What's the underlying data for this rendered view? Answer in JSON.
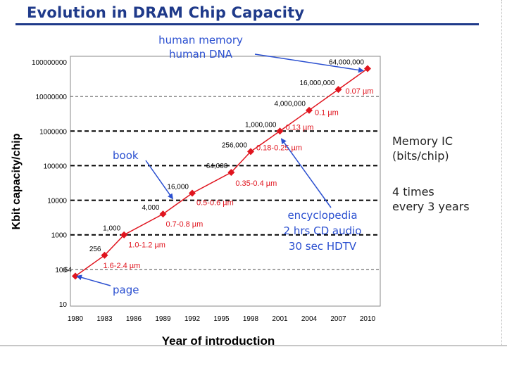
{
  "header": {
    "title": "Evolution in DRAM Chip Capacity"
  },
  "side_notes": {
    "memory_ic_line1": "Memory IC",
    "memory_ic_line2": "(bits/chip)",
    "growth_line1": "4 times",
    "growth_line2": "every 3 years"
  },
  "colors": {
    "title": "#1f3a8a",
    "series": "#e0141e",
    "callout": "#2a4fd0",
    "grid": "#000000"
  },
  "chart_data": {
    "type": "scatter",
    "title": "Evolution in DRAM Chip Capacity",
    "xlabel": "Year of introduction",
    "ylabel": "Kbit capacity/chip",
    "yscale": "log",
    "ylim": [
      10,
      100000000
    ],
    "xlim": [
      1980,
      2010
    ],
    "x_ticks": [
      "1980",
      "1983",
      "1986",
      "1989",
      "1992",
      "1995",
      "1998",
      "2001",
      "2004",
      "2007",
      "2010"
    ],
    "y_ticks": [
      "10",
      "100",
      "1000",
      "10000",
      "100000",
      "1000000",
      "10000000",
      "100000000"
    ],
    "y_tick_values": [
      10,
      100,
      1000,
      10000,
      100000,
      1000000,
      10000000,
      100000000
    ],
    "points": [
      {
        "x": 1980,
        "y": 64,
        "label": "64",
        "process": ""
      },
      {
        "x": 1983,
        "y": 256,
        "label": "256",
        "process": "1.6-2.4 µm"
      },
      {
        "x": 1985,
        "y": 1000,
        "label": "1,000",
        "process": "1.0-1.2 µm"
      },
      {
        "x": 1989,
        "y": 4000,
        "label": "4,000",
        "process": "0.7-0.8 µm"
      },
      {
        "x": 1992,
        "y": 16000,
        "label": "16,000",
        "process": "0.5-0.6 µm"
      },
      {
        "x": 1996,
        "y": 64000,
        "label": "64,000",
        "process": "0.35-0.4 µm"
      },
      {
        "x": 1998,
        "y": 256000,
        "label": "256,000",
        "process": "0.18-0.25 µm"
      },
      {
        "x": 2001,
        "y": 1000000,
        "label": "1,000,000",
        "process": "0.13 µm"
      },
      {
        "x": 2004,
        "y": 4000000,
        "label": "4,000,000",
        "process": "0.1 µm"
      },
      {
        "x": 2007,
        "y": 16000000,
        "label": "16,000,000",
        "process": "0.07 µm"
      },
      {
        "x": 2010,
        "y": 64000000,
        "label": "64,000,000",
        "process": ""
      }
    ],
    "annotations": [
      {
        "text_lines": [
          "human memory",
          "human DNA"
        ],
        "target_x": 2010,
        "target_y": 64000000
      },
      {
        "text_lines": [
          "book"
        ],
        "target_x": 1990,
        "target_y": 10000
      },
      {
        "text_lines": [
          "encyclopedia",
          "2 hrs CD audio",
          "30 sec HDTV"
        ],
        "target_x": 2001,
        "target_y": 800000
      },
      {
        "text_lines": [
          "page"
        ],
        "target_x": 1980,
        "target_y": 64
      }
    ]
  }
}
